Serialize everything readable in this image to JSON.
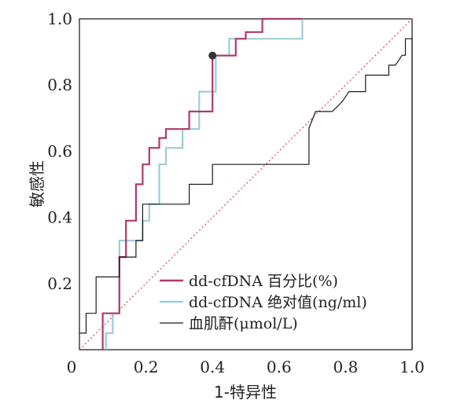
{
  "chart_data": {
    "type": "line",
    "title": "",
    "xlabel": "1-特异性",
    "ylabel": "敏感性",
    "xlim": [
      0,
      1
    ],
    "ylim": [
      0,
      1
    ],
    "xticks": [
      "0",
      "0.2",
      "0.4",
      "0.6",
      "0.8",
      "1.0"
    ],
    "yticks": [
      "0.2",
      "0.4",
      "0.6",
      "0.8",
      "1.0"
    ],
    "grid": false,
    "legend_position": "bottom-right",
    "reference_line": {
      "from": [
        0,
        0
      ],
      "to": [
        1,
        1
      ],
      "color": "#e05050",
      "style": "dotted"
    },
    "marked_point": {
      "x": 0.4,
      "y": 0.889,
      "color": "#333333"
    },
    "series": [
      {
        "name": "dd-cfDNA 百分比(%)",
        "color": "#b0386a",
        "points": [
          [
            0.07,
            0
          ],
          [
            0.07,
            0.11
          ],
          [
            0.12,
            0.11
          ],
          [
            0.12,
            0.28
          ],
          [
            0.14,
            0.28
          ],
          [
            0.14,
            0.39
          ],
          [
            0.17,
            0.39
          ],
          [
            0.17,
            0.5
          ],
          [
            0.19,
            0.5
          ],
          [
            0.19,
            0.56
          ],
          [
            0.21,
            0.56
          ],
          [
            0.21,
            0.61
          ],
          [
            0.24,
            0.61
          ],
          [
            0.24,
            0.64
          ],
          [
            0.26,
            0.64
          ],
          [
            0.26,
            0.667
          ],
          [
            0.33,
            0.667
          ],
          [
            0.33,
            0.72
          ],
          [
            0.4,
            0.72
          ],
          [
            0.4,
            0.889
          ],
          [
            0.47,
            0.889
          ],
          [
            0.47,
            0.94
          ],
          [
            0.5,
            0.94
          ],
          [
            0.5,
            0.96
          ],
          [
            0.55,
            0.96
          ],
          [
            0.55,
            1
          ],
          [
            0.67,
            1
          ]
        ]
      },
      {
        "name": "dd-cfDNA 绝对值(ng/ml)",
        "color": "#9ccdd8",
        "points": [
          [
            0.08,
            0
          ],
          [
            0.08,
            0.05
          ],
          [
            0.1,
            0.05
          ],
          [
            0.1,
            0.11
          ],
          [
            0.12,
            0.11
          ],
          [
            0.12,
            0.33
          ],
          [
            0.14,
            0.33
          ],
          [
            0.14,
            0.33
          ],
          [
            0.19,
            0.33
          ],
          [
            0.19,
            0.39
          ],
          [
            0.21,
            0.39
          ],
          [
            0.21,
            0.44
          ],
          [
            0.24,
            0.44
          ],
          [
            0.24,
            0.56
          ],
          [
            0.26,
            0.56
          ],
          [
            0.26,
            0.61
          ],
          [
            0.31,
            0.61
          ],
          [
            0.31,
            0.667
          ],
          [
            0.36,
            0.667
          ],
          [
            0.36,
            0.78
          ],
          [
            0.38,
            0.78
          ],
          [
            0.38,
            0.78
          ],
          [
            0.41,
            0.78
          ],
          [
            0.41,
            0.889
          ],
          [
            0.45,
            0.889
          ],
          [
            0.45,
            0.94
          ],
          [
            0.67,
            0.94
          ],
          [
            0.67,
            1
          ]
        ]
      },
      {
        "name": "血肌酐(μmol/L)",
        "color": "#1a1a1a",
        "points": [
          [
            0,
            0.05
          ],
          [
            0.02,
            0.05
          ],
          [
            0.02,
            0.11
          ],
          [
            0.05,
            0.11
          ],
          [
            0.05,
            0.22
          ],
          [
            0.12,
            0.22
          ],
          [
            0.12,
            0.28
          ],
          [
            0.14,
            0.28
          ],
          [
            0.14,
            0.28
          ],
          [
            0.17,
            0.28
          ],
          [
            0.17,
            0.33
          ],
          [
            0.19,
            0.33
          ],
          [
            0.19,
            0.44
          ],
          [
            0.26,
            0.44
          ],
          [
            0.26,
            0.44
          ],
          [
            0.33,
            0.44
          ],
          [
            0.33,
            0.5
          ],
          [
            0.4,
            0.5
          ],
          [
            0.4,
            0.56
          ],
          [
            0.69,
            0.56
          ],
          [
            0.69,
            0.67
          ],
          [
            0.71,
            0.72
          ],
          [
            0.76,
            0.72
          ],
          [
            0.79,
            0.75
          ],
          [
            0.81,
            0.78
          ],
          [
            0.86,
            0.78
          ],
          [
            0.86,
            0.83
          ],
          [
            0.93,
            0.83
          ],
          [
            0.93,
            0.86
          ],
          [
            0.95,
            0.86
          ],
          [
            0.97,
            0.89
          ],
          [
            0.98,
            0.89
          ],
          [
            0.98,
            0.94
          ],
          [
            1,
            0.94
          ],
          [
            1,
            0
          ]
        ]
      }
    ]
  }
}
